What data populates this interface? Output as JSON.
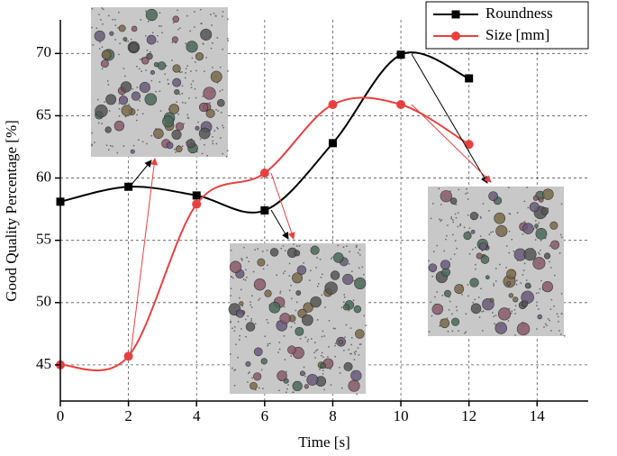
{
  "chart_data": {
    "type": "line",
    "x_label": "Time [s]",
    "y_label": "Good Quality Percentage [%]",
    "x": [
      0,
      2,
      4,
      6,
      8,
      10,
      12
    ],
    "series": [
      {
        "name": "Roundness",
        "color": "#000000",
        "marker": "square",
        "values": [
          58.1,
          59.3,
          58.6,
          57.4,
          62.8,
          69.9,
          68.0
        ]
      },
      {
        "name": "Size [mm]",
        "color": "#e8403f",
        "marker": "circle",
        "values": [
          45.0,
          45.7,
          57.9,
          60.4,
          65.9,
          65.9,
          62.7
        ]
      }
    ],
    "xlim": [
      0,
      15.5
    ],
    "xticks": [
      0,
      2,
      4,
      6,
      8,
      10,
      12,
      14
    ],
    "ylim": [
      42.1,
      72.7
    ],
    "yticks": [
      45,
      50,
      55,
      60,
      65,
      70
    ],
    "grid": true,
    "smooth": true,
    "legend": "top-right"
  }
}
